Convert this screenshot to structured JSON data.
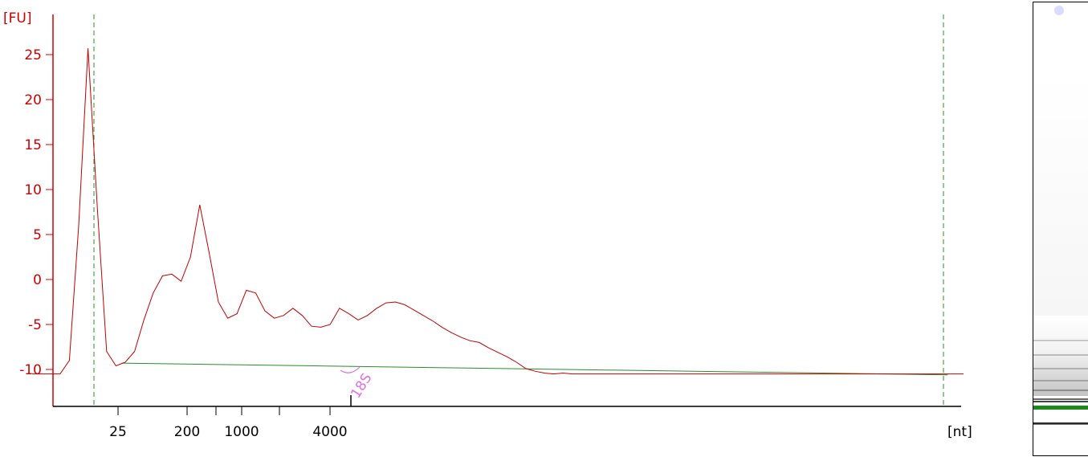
{
  "chart_data": {
    "type": "line",
    "title": "",
    "ylabel": "[FU]",
    "xlabel": "[nt]",
    "ylim": [
      -14,
      27
    ],
    "y_ticks": [
      25,
      20,
      15,
      10,
      5,
      0,
      -5,
      -10
    ],
    "x_tick_labels": [
      "25",
      "200",
      "1000",
      "4000"
    ],
    "peak_annotation": {
      "label": "18S"
    },
    "series": [
      {
        "kind": "electropherogram",
        "color": "#c00000",
        "x": [
          0,
          1,
          2,
          3,
          4,
          5,
          6,
          7,
          8,
          9,
          10,
          11,
          12,
          13,
          14,
          15,
          16,
          17,
          18,
          19,
          20,
          21,
          22,
          23,
          24,
          25,
          26,
          27,
          28,
          29,
          30,
          31,
          32,
          33,
          34,
          35,
          36,
          37,
          38,
          39,
          40,
          41,
          42,
          43,
          44,
          45,
          46,
          47,
          48,
          49,
          50,
          51,
          52,
          53,
          54,
          55,
          56,
          57,
          58,
          59,
          60,
          61,
          62,
          63,
          64,
          65,
          66,
          67,
          68,
          69,
          70,
          71,
          72,
          73,
          74,
          75,
          76,
          77,
          78,
          79,
          80,
          81,
          82,
          83,
          84,
          85,
          86,
          87,
          88,
          89,
          90,
          91,
          92,
          93,
          94,
          95,
          96,
          97,
          98,
          99,
          100
        ],
        "y": [
          -10.5,
          -10.5,
          -10.5,
          -10.5,
          -9.0,
          6.0,
          25.7,
          8.0,
          -8.0,
          -9.6,
          -9.2,
          -8.0,
          -4.5,
          -1.5,
          0.4,
          0.6,
          -0.2,
          2.5,
          8.3,
          3.0,
          -2.5,
          -4.3,
          -3.8,
          -1.2,
          -1.5,
          -3.5,
          -4.3,
          -4.0,
          -3.2,
          -4.0,
          -5.2,
          -5.3,
          -5.0,
          -3.2,
          -3.8,
          -4.5,
          -4.0,
          -3.2,
          -2.6,
          -2.5,
          -2.8,
          -3.4,
          -4.0,
          -4.6,
          -5.3,
          -5.9,
          -6.4,
          -6.8,
          -7.0,
          -7.6,
          -8.1,
          -8.6,
          -9.2,
          -9.9,
          -10.2,
          -10.4,
          -10.5,
          -10.4,
          -10.5,
          -10.5,
          -10.5,
          -10.5,
          -10.5,
          -10.5,
          -10.5,
          -10.5,
          -10.5,
          -10.5,
          -10.5,
          -10.5,
          -10.5,
          -10.5,
          -10.5,
          -10.5,
          -10.5,
          -10.5,
          -10.5,
          -10.5,
          -10.5,
          -10.5,
          -10.5,
          -10.5,
          -10.5,
          -10.5,
          -10.5,
          -10.5,
          -10.5,
          -10.5,
          -10.5,
          -10.5,
          -10.5,
          -10.5,
          -10.5,
          -10.5,
          -10.5,
          -10.5,
          -10.5,
          -10.5,
          -10.5,
          -10.5,
          -10.5
        ]
      },
      {
        "kind": "baseline",
        "color": "#2e8b2e",
        "x": [
          9.6,
          98.3
        ],
        "y": [
          -9.3,
          -10.6
        ]
      }
    ],
    "markers": [
      {
        "kind": "region-boundary",
        "color": "#2e8b2e"
      },
      {
        "kind": "region-boundary",
        "color": "#2e8b2e"
      }
    ],
    "grid": false,
    "legend": "none"
  },
  "gel": {
    "background": "#ffffff",
    "marker_color": "#1a8a1a"
  }
}
